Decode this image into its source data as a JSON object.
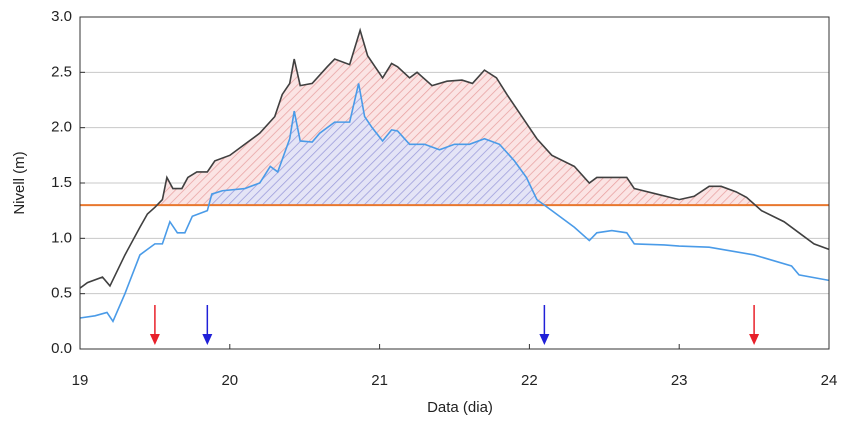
{
  "chart_data": {
    "type": "line",
    "x_label": "Data (dia)",
    "y_label": "Nivell (m)",
    "xlim": [
      19,
      24
    ],
    "xticks": [
      19,
      20,
      21,
      22,
      23,
      24
    ],
    "ylim": [
      0,
      3
    ],
    "yticks": [
      {
        "value": 0,
        "label": "0.0"
      },
      0.5,
      {
        "value": 1,
        "label": "1.0"
      },
      1.5,
      {
        "value": 2,
        "label": "2.0"
      },
      2.5,
      {
        "value": 3,
        "label": "3.0"
      }
    ],
    "grid": true,
    "threshold": {
      "value": 1.3,
      "color": "#e8772e"
    },
    "series": [
      {
        "color": "#404040",
        "hatch_color": "#e8a0a0",
        "x": [
          19.0,
          19.05,
          19.15,
          19.2,
          19.3,
          19.4,
          19.45,
          19.5,
          19.55,
          19.58,
          19.62,
          19.68,
          19.72,
          19.78,
          19.85,
          19.9,
          20.0,
          20.1,
          20.2,
          20.3,
          20.35,
          20.4,
          20.43,
          20.47,
          20.55,
          20.65,
          20.7,
          20.8,
          20.87,
          20.92,
          20.97,
          21.02,
          21.08,
          21.12,
          21.2,
          21.25,
          21.35,
          21.45,
          21.55,
          21.62,
          21.7,
          21.78,
          21.85,
          21.95,
          22.05,
          22.15,
          22.3,
          22.4,
          22.45,
          22.55,
          22.65,
          22.7,
          22.85,
          23.0,
          23.1,
          23.2,
          23.28,
          23.38,
          23.45,
          23.55,
          23.7,
          23.8,
          23.9,
          24.0
        ],
        "values": [
          0.55,
          0.6,
          0.65,
          0.57,
          0.85,
          1.1,
          1.22,
          1.28,
          1.35,
          1.55,
          1.45,
          1.45,
          1.55,
          1.6,
          1.6,
          1.7,
          1.75,
          1.85,
          1.95,
          2.1,
          2.3,
          2.4,
          2.62,
          2.38,
          2.4,
          2.55,
          2.62,
          2.57,
          2.88,
          2.65,
          2.55,
          2.45,
          2.58,
          2.55,
          2.45,
          2.5,
          2.38,
          2.42,
          2.43,
          2.4,
          2.52,
          2.45,
          2.3,
          2.1,
          1.9,
          1.75,
          1.65,
          1.5,
          1.55,
          1.55,
          1.55,
          1.45,
          1.4,
          1.35,
          1.38,
          1.47,
          1.47,
          1.42,
          1.37,
          1.25,
          1.15,
          1.05,
          0.95,
          0.9
        ]
      },
      {
        "color": "#4a9be8",
        "hatch_color": "#8f8fd8",
        "x": [
          19.0,
          19.1,
          19.18,
          19.22,
          19.3,
          19.4,
          19.45,
          19.5,
          19.55,
          19.6,
          19.65,
          19.7,
          19.75,
          19.85,
          19.88,
          19.95,
          20.1,
          20.2,
          20.27,
          20.32,
          20.4,
          20.43,
          20.47,
          20.55,
          20.6,
          20.7,
          20.8,
          20.86,
          20.9,
          20.95,
          21.02,
          21.08,
          21.12,
          21.2,
          21.3,
          21.4,
          21.5,
          21.6,
          21.7,
          21.8,
          21.9,
          21.98,
          22.05,
          22.15,
          22.3,
          22.4,
          22.45,
          22.55,
          22.65,
          22.7,
          22.9,
          23.0,
          23.2,
          23.5,
          23.75,
          23.8,
          24.0
        ],
        "values": [
          0.28,
          0.3,
          0.33,
          0.25,
          0.5,
          0.85,
          0.9,
          0.95,
          0.95,
          1.15,
          1.05,
          1.05,
          1.2,
          1.25,
          1.4,
          1.43,
          1.45,
          1.5,
          1.65,
          1.6,
          1.9,
          2.15,
          1.88,
          1.87,
          1.95,
          2.05,
          2.05,
          2.4,
          2.1,
          2.0,
          1.88,
          1.98,
          1.97,
          1.85,
          1.85,
          1.8,
          1.85,
          1.85,
          1.9,
          1.85,
          1.7,
          1.55,
          1.35,
          1.25,
          1.1,
          0.98,
          1.05,
          1.07,
          1.05,
          0.95,
          0.94,
          0.93,
          0.92,
          0.85,
          0.75,
          0.67,
          0.62
        ]
      }
    ],
    "arrows": [
      {
        "x": 19.5,
        "color": "#e8202a"
      },
      {
        "x": 19.85,
        "color": "#2020d8"
      },
      {
        "x": 22.1,
        "color": "#2020d8"
      },
      {
        "x": 23.5,
        "color": "#e8202a"
      }
    ]
  }
}
